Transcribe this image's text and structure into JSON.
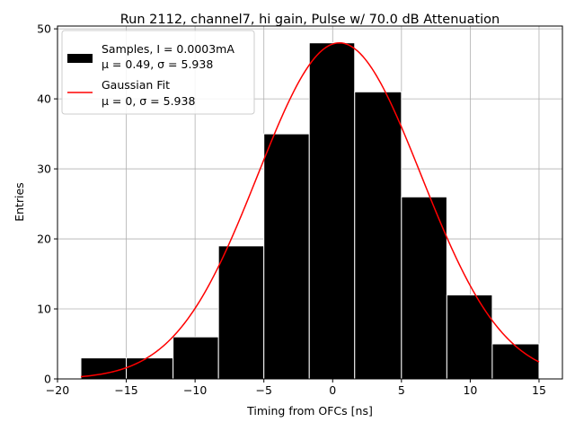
{
  "chart_data": {
    "type": "histogram",
    "title": "Run 2112, channel7, hi gain, Pulse w/ 70.0 dB Attenuation",
    "xlabel": "Timing from OFCs [ns]",
    "ylabel": "Entries",
    "xlim": [
      -20.0,
      16.7
    ],
    "ylim": [
      0,
      50.4
    ],
    "xticks": [
      -20,
      -15,
      -10,
      -5,
      0,
      5,
      10,
      15
    ],
    "xtick_labels": [
      "−20",
      "−15",
      "−10",
      "−5",
      "0",
      "5",
      "10",
      "15"
    ],
    "yticks": [
      0,
      10,
      20,
      30,
      40,
      50
    ],
    "ytick_labels": [
      "0",
      "10",
      "20",
      "30",
      "40",
      "50"
    ],
    "grid": true,
    "legend_position": "top-left",
    "bins": {
      "edges": [
        -18.3,
        -15.0,
        -11.6,
        -8.3,
        -5.0,
        -1.7,
        1.6,
        5.0,
        8.3,
        11.6,
        15.0
      ],
      "counts": [
        3,
        3,
        6,
        19,
        35,
        48,
        41,
        26,
        12,
        5
      ],
      "color": "#000000",
      "edgecolor": "#ffffff"
    },
    "series": [
      {
        "name": "Samples, I = 0.0003mA",
        "name_line2": "μ = 0.49, σ = 5.938",
        "type": "histogram",
        "color": "#000000"
      },
      {
        "name": "Gaussian Fit",
        "name_line2": "μ = 0, σ = 5.938",
        "type": "line",
        "color": "#ff0000",
        "amplitude": 48,
        "mu": 0.49,
        "sigma": 5.938,
        "x_range": [
          -18.3,
          15.0
        ]
      }
    ]
  }
}
